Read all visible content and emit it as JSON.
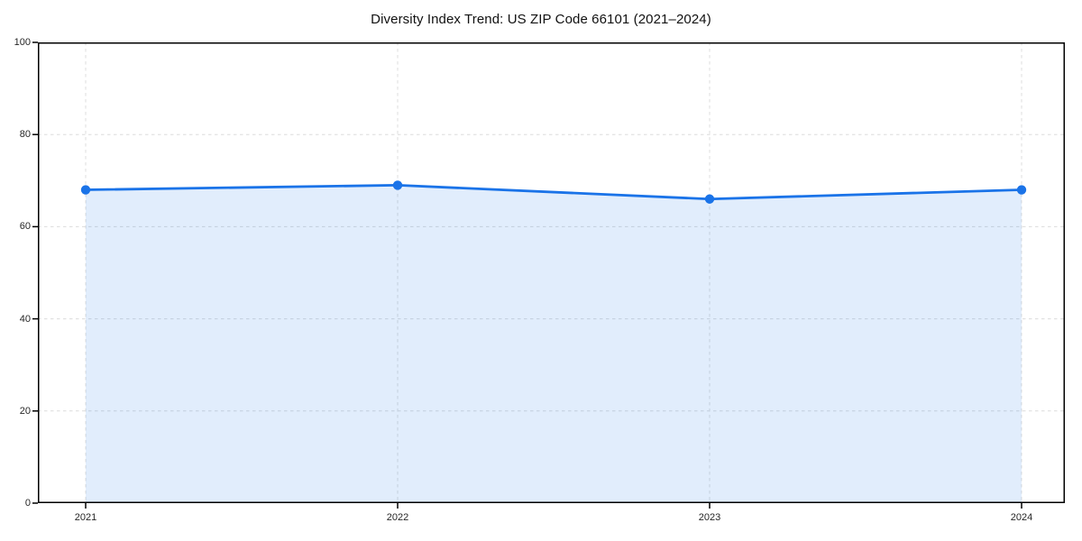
{
  "chart_data": {
    "type": "area",
    "title": "Diversity Index Trend: US ZIP Code 66101 (2021–2024)",
    "x": [
      "2021",
      "2022",
      "2023",
      "2024"
    ],
    "series": [
      {
        "name": "Diversity Index",
        "values": [
          68,
          69,
          66,
          68
        ]
      }
    ],
    "xlabel": "",
    "ylabel": "",
    "ylim": [
      0,
      100
    ],
    "yticks": [
      0,
      20,
      40,
      60,
      80,
      100
    ],
    "grid": true,
    "grid_style": "dashed",
    "legend": "none",
    "colors": {
      "line": "#1a73e8",
      "marker": "#1a73e8",
      "fill": "rgba(26,115,232,0.13)",
      "grid": "#dcdcdc",
      "spine": "#000000",
      "tick_text": "#262626",
      "title_text": "#111111"
    }
  }
}
